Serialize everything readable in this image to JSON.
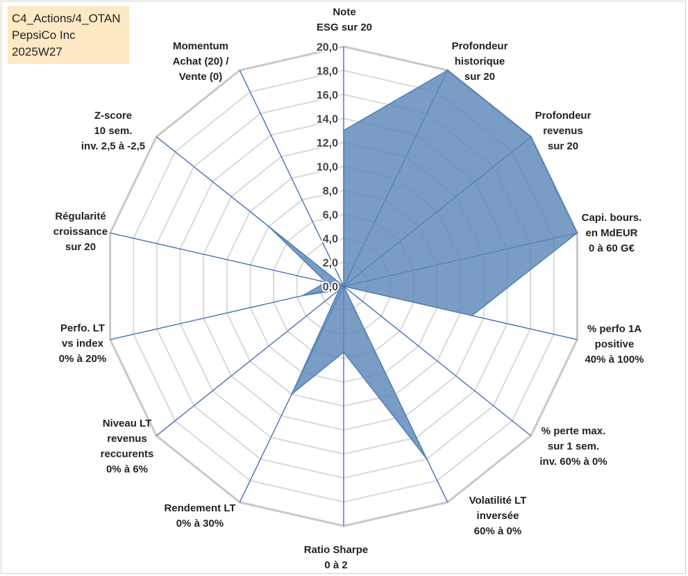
{
  "info_box": {
    "line1": "C4_Actions/4_OTAN",
    "line2": "PepsiCo Inc",
    "line3": "2025W27"
  },
  "chart_data": {
    "type": "radar",
    "ylim": [
      0,
      20
    ],
    "tick_step": 2,
    "tick_labels": [
      "0,0",
      "2,0",
      "4,0",
      "6,0",
      "8,0",
      "10,0",
      "12,0",
      "14,0",
      "16,0",
      "18,0",
      "20,0"
    ],
    "axes": [
      [
        "Note",
        "ESG sur 20"
      ],
      [
        "Profondeur",
        "historique",
        "sur 20"
      ],
      [
        "Profondeur",
        "revenus",
        "sur 20"
      ],
      [
        "Capi. bours.",
        "en MdEUR",
        "0 à 60 G€"
      ],
      [
        "% perfo 1A",
        "positive",
        "40% à 100%"
      ],
      [
        "% perte max.",
        "sur 1 sem.",
        "inv. 60% à 0%"
      ],
      [
        "Volatilité LT",
        "inversée",
        "60% à 0%"
      ],
      [
        "Ratio Sharpe",
        "0 à 2"
      ],
      [
        "Rendement LT",
        "0% à 30%"
      ],
      [
        "Niveau LT",
        "revenus",
        "reccurents",
        "0% à 6%"
      ],
      [
        "Perfo. LT",
        "vs index",
        "0% à 20%"
      ],
      [
        "Régularité",
        "croissance",
        "sur 20"
      ],
      [
        "Z-score",
        "10 sem.",
        "inv. 2,5 à -2,5"
      ],
      [
        "Momentum",
        "Achat (20) /",
        "Vente (0)"
      ]
    ],
    "values": [
      13.0,
      20.0,
      20.0,
      20.0,
      11.0,
      0.0,
      16.0,
      5.5,
      10.0,
      0.5,
      3.5,
      1.5,
      8.0,
      0.0
    ],
    "series_color": "#5b87b8",
    "series_fill_opacity": 0.82,
    "grid": true,
    "legend": "none"
  }
}
